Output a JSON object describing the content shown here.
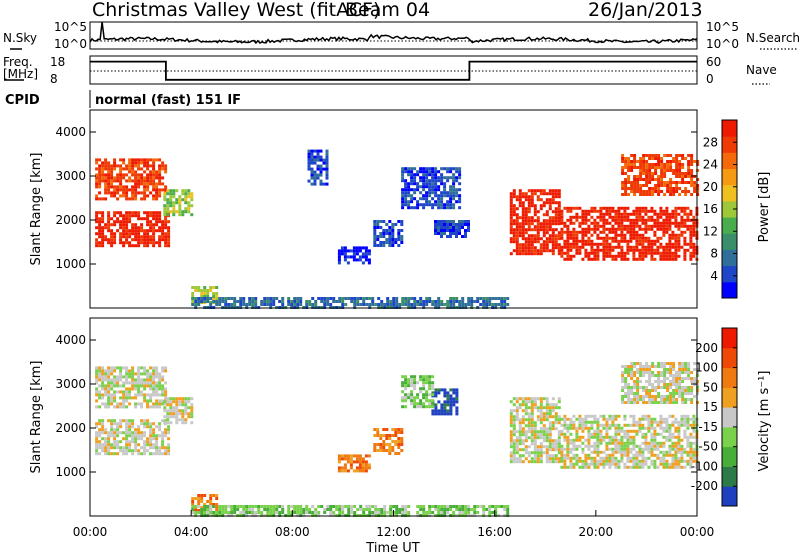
{
  "header": {
    "station": "Christmas Valley West (fitACF)",
    "beam": "Beam 04",
    "date": "26/Jan/2013"
  },
  "chart_data": [
    {
      "type": "line",
      "name": "noise",
      "left_label": "N.Sky",
      "right_label": "N.Search",
      "left_ticks": [
        "10^5",
        "10^0"
      ],
      "right_ticks": [
        "10^5",
        "10^0"
      ]
    },
    {
      "type": "line",
      "name": "frequency",
      "left_label": "Freq.\n[MHz]",
      "left_label_lines": [
        "Freq.",
        "[MHz]"
      ],
      "right_label": "Nave",
      "left_ticks": [
        "18",
        "8"
      ],
      "right_ticks": [
        "60",
        "0"
      ],
      "ylim": [
        8,
        18
      ],
      "series": [
        {
          "values": [
            [
              0,
              16
            ],
            [
              3.0,
              16
            ],
            [
              3.0,
              9.5
            ],
            [
              15.0,
              9.5
            ],
            [
              15.0,
              16
            ],
            [
              24,
              16
            ]
          ]
        }
      ]
    },
    {
      "type": "table",
      "name": "cpid",
      "label": "CPID",
      "value": "normal (fast) 151 IF"
    },
    {
      "type": "scatter",
      "name": "power",
      "ylabel": "Slant Range [km]",
      "ylim": [
        0,
        4500
      ],
      "yticks": [
        "1000",
        "2000",
        "3000",
        "4000"
      ],
      "colorbar_label": "Power [dB]",
      "colorbar_ticks": [
        "28",
        "24",
        "20",
        "16",
        "12",
        "8",
        "4"
      ],
      "colors": [
        "#0000ff",
        "#1e46c8",
        "#2f6f9a",
        "#3a8f6a",
        "#49ad4e",
        "#9cc83a",
        "#f0c020",
        "#f59a12",
        "#f46a0a",
        "#f03a05",
        "#ee1a00"
      ],
      "regions": [
        {
          "x": [
            0.2,
            3.1
          ],
          "y": [
            1400,
            2200
          ],
          "level": 10
        },
        {
          "x": [
            0.2,
            3.0
          ],
          "y": [
            2500,
            3400
          ],
          "level": 9
        },
        {
          "x": [
            2.9,
            4.0
          ],
          "y": [
            2100,
            2700
          ],
          "level": 5
        },
        {
          "x": [
            8.6,
            9.4
          ],
          "y": [
            2800,
            3600
          ],
          "level": 1
        },
        {
          "x": [
            9.8,
            11.0
          ],
          "y": [
            1000,
            1400
          ],
          "level": 0
        },
        {
          "x": [
            11.2,
            12.3
          ],
          "y": [
            1400,
            2000
          ],
          "level": 1
        },
        {
          "x": [
            12.3,
            14.6
          ],
          "y": [
            2300,
            3200
          ],
          "level": 1
        },
        {
          "x": [
            13.6,
            15.0
          ],
          "y": [
            1600,
            2000
          ],
          "level": 1
        },
        {
          "x": [
            16.6,
            18.6
          ],
          "y": [
            1200,
            2700
          ],
          "level": 10
        },
        {
          "x": [
            18.6,
            24.0
          ],
          "y": [
            1100,
            2300
          ],
          "level": 10
        },
        {
          "x": [
            21.0,
            24.0
          ],
          "y": [
            2600,
            3500
          ],
          "level": 9
        },
        {
          "x": [
            4.0,
            5.0
          ],
          "y": [
            150,
            500
          ],
          "level": 5
        },
        {
          "x": [
            4.0,
            16.5
          ],
          "y": [
            0,
            250
          ],
          "level": 2
        }
      ]
    },
    {
      "type": "scatter",
      "name": "velocity",
      "ylabel": "Slant Range [km]",
      "xlabel": "Time UT",
      "ylim": [
        0,
        4500
      ],
      "yticks": [
        "1000",
        "2000",
        "3000",
        "4000"
      ],
      "xticks": [
        "00:00",
        "04:00",
        "08:00",
        "12:00",
        "16:00",
        "20:00",
        "00:00"
      ],
      "xlim": [
        0,
        24
      ],
      "colorbar_label": "Velocity [m s⁻¹]",
      "colorbar_ticks": [
        "200",
        "100",
        "50",
        "15",
        "-15",
        "-50",
        "-100",
        "-200"
      ],
      "colors": [
        "#1e3fbf",
        "#2c7a48",
        "#49ad3a",
        "#7ad24c",
        "#c8c8c8",
        "#f0a020",
        "#f07a10",
        "#ee4a05",
        "#ee1a00"
      ],
      "regions": [
        {
          "x": [
            0.2,
            3.1
          ],
          "y": [
            1400,
            2200
          ],
          "level": 4
        },
        {
          "x": [
            0.2,
            3.0
          ],
          "y": [
            2500,
            3400
          ],
          "level": 4
        },
        {
          "x": [
            2.9,
            4.0
          ],
          "y": [
            2100,
            2700
          ],
          "level": 4
        },
        {
          "x": [
            9.8,
            11.0
          ],
          "y": [
            1000,
            1400
          ],
          "level": 6
        },
        {
          "x": [
            11.2,
            12.3
          ],
          "y": [
            1400,
            2000
          ],
          "level": 6
        },
        {
          "x": [
            13.5,
            14.5
          ],
          "y": [
            2300,
            2900
          ],
          "level": 0
        },
        {
          "x": [
            12.3,
            13.6
          ],
          "y": [
            2500,
            3200
          ],
          "level": 3
        },
        {
          "x": [
            16.6,
            18.6
          ],
          "y": [
            1200,
            2700
          ],
          "level": 4
        },
        {
          "x": [
            18.6,
            24.0
          ],
          "y": [
            1100,
            2300
          ],
          "level": 4
        },
        {
          "x": [
            21.0,
            24.0
          ],
          "y": [
            2600,
            3500
          ],
          "level": 4
        },
        {
          "x": [
            4.0,
            5.0
          ],
          "y": [
            150,
            500
          ],
          "level": 6
        },
        {
          "x": [
            4.0,
            16.5
          ],
          "y": [
            0,
            250
          ],
          "level": 3
        }
      ]
    }
  ]
}
